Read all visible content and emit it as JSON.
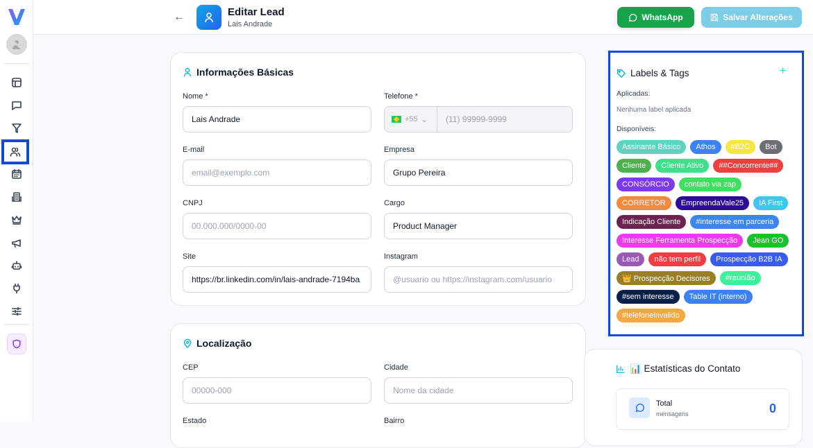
{
  "header": {
    "title": "Editar Lead",
    "subtitle": "Lais Andrade",
    "whatsapp_label": "WhatsApp",
    "save_label": "Salvar Alterações"
  },
  "basic": {
    "title": "Informações Básicas",
    "nome_label": "Nome *",
    "nome_value": "Lais Andrade",
    "telefone_label": "Telefone *",
    "country_code": "+55",
    "telefone_placeholder": "(11) 99999-9999",
    "email_label": "E-mail",
    "email_placeholder": "email@exemplo.com",
    "empresa_label": "Empresa",
    "empresa_value": "Grupo Pereira",
    "cnpj_label": "CNPJ",
    "cnpj_placeholder": "00.000.000/0000-00",
    "cargo_label": "Cargo",
    "cargo_value": "Product Manager",
    "site_label": "Site",
    "site_value": "https://br.linkedin.com/in/lais-andrade-7194ba",
    "instagram_label": "Instagram",
    "instagram_placeholder": "@usuario ou https://instagram.com/usuario"
  },
  "location": {
    "title": "Localização",
    "cep_label": "CEP",
    "cep_placeholder": "00000-000",
    "cidade_label": "Cidade",
    "cidade_placeholder": "Nome da cidade",
    "estado_label": "Estado",
    "bairro_label": "Bairro"
  },
  "labels": {
    "title": "Labels & Tags",
    "add": "+",
    "applied_label": "Aplicadas:",
    "applied_empty": "Nenhuma label aplicada",
    "available_label": "Disponíveis:",
    "tags": [
      {
        "text": "Assinante Básico",
        "color": "#5fd3c0"
      },
      {
        "text": "Athos",
        "color": "#3b82f6"
      },
      {
        "text": "#B2C",
        "color": "#f5e642"
      },
      {
        "text": "Bot",
        "color": "#6b6e73"
      },
      {
        "text": "Cliente",
        "color": "#4caf50"
      },
      {
        "text": "Cliente Ativo",
        "color": "#3ee08a"
      },
      {
        "text": "##Concorrente##",
        "color": "#ef4040"
      },
      {
        "text": "CONSÓRCIO",
        "color": "#7c3aed"
      },
      {
        "text": "contato via zap",
        "color": "#3fe060"
      },
      {
        "text": "CORRETOR",
        "color": "#f78a3a"
      },
      {
        "text": "EmpreendaVale25",
        "color": "#2e0a99"
      },
      {
        "text": "IA First",
        "color": "#3cc6f0"
      },
      {
        "text": "Indicação Cliente",
        "color": "#6d2350"
      },
      {
        "text": "#interesse em parceria",
        "color": "#3b86f0"
      },
      {
        "text": "Interesse Ferramenta Prospecção",
        "color": "#ee3ae8"
      },
      {
        "text": "Jean GO",
        "color": "#17c22e"
      },
      {
        "text": "Lead",
        "color": "#9b59b6"
      },
      {
        "text": "não tem perfil",
        "color": "#f03e44"
      },
      {
        "text": "Prospecção B2B IA",
        "color": "#3a5bf0"
      },
      {
        "text": "👑 Prospecção Decisores",
        "color": "#9a7f28"
      },
      {
        "text": "#reunião",
        "color": "#3ef09a"
      },
      {
        "text": "#sem interesse",
        "color": "#0a1f4a"
      },
      {
        "text": "Table IT (interno)",
        "color": "#3b82f0"
      },
      {
        "text": "#telefoneinvalido",
        "color": "#f5a742"
      }
    ]
  },
  "stats": {
    "title": "📊 Estatísticas do Contato",
    "total_label": "Total",
    "total_sub": "mensagens",
    "total_value": "0"
  },
  "colors": {
    "accent": "#0a4bdc",
    "whatsapp": "#16a34a",
    "save": "#7ecde6",
    "teal_icon": "#06b6d4"
  }
}
